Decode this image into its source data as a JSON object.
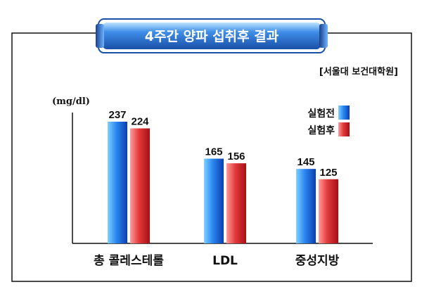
{
  "title": "4주간 양파 섭취후 결과",
  "source": "[서울대 보건대학원]",
  "unit": "(mg/dl)",
  "colors": {
    "before": "#1e6fe0",
    "after": "#d9262b",
    "title_bg": "#1f5fb8",
    "frame": "#111111"
  },
  "chart_data": {
    "type": "bar",
    "categories": [
      "총 콜레스테롤",
      "LDL",
      "중성지방"
    ],
    "series": [
      {
        "name": "실험전",
        "values": [
          237,
          165,
          145
        ]
      },
      {
        "name": "실험후",
        "values": [
          224,
          156,
          125
        ]
      }
    ],
    "ylabel": "(mg/dl)",
    "ylim": [
      0,
      237
    ],
    "legend_position": "top-right",
    "grid": false
  }
}
